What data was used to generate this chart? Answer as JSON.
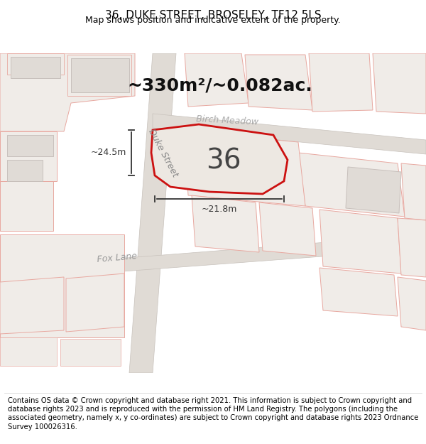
{
  "title": "36, DUKE STREET, BROSELEY, TF12 5LS",
  "subtitle": "Map shows position and indicative extent of the property.",
  "area_text": "~330m²/~0.082ac.",
  "number_label": "36",
  "dim1_label": "~24.5m",
  "dim2_label": "~21.8m",
  "road_label1": "Duke Street",
  "road_label2": "Birch Meadow",
  "road_label3": "Fox Lane",
  "footer": "Contains OS data © Crown copyright and database right 2021. This information is subject to Crown copyright and database rights 2023 and is reproduced with the permission of HM Land Registry. The polygons (including the associated geometry, namely x, y co-ordinates) are subject to Crown copyright and database rights 2023 Ordnance Survey 100026316.",
  "map_bg": "#f5f5f5",
  "road_fill": "#e0dbd5",
  "road_edge": "#c8c2bc",
  "plot_border_color": "#cc1111",
  "plot_fill": "#ede8e3",
  "parcel_color": "#f0ece8",
  "parcel_edge": "#e8a8a0",
  "building_fill": "#e0dbd6",
  "building_edge": "#c8c0bc",
  "dim_color": "#333333",
  "area_fontsize": 18,
  "number_fontsize": 28,
  "road_label_fontsize": 9,
  "dim_fontsize": 9,
  "footer_fontsize": 7.2,
  "title_fontsize": 11,
  "subtitle_fontsize": 9
}
